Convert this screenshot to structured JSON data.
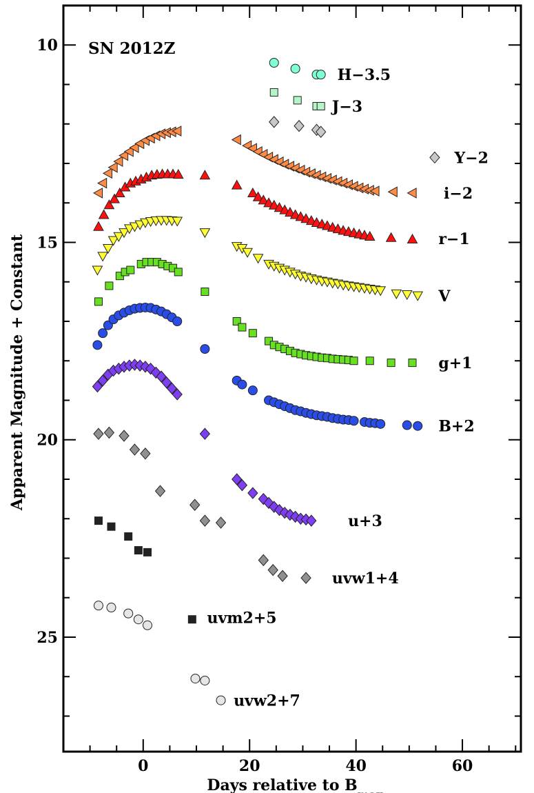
{
  "chart_data": {
    "type": "scatter",
    "title": "SN 2012Z",
    "xlabel": "Days relative to B",
    "xlabel_subscript": "max",
    "ylabel": "Apparent Magnitude + Constant",
    "xlim": [
      -15,
      71
    ],
    "ylim": [
      27.9,
      9.0
    ],
    "y_inverted": true,
    "x_ticks": [
      0,
      20,
      40,
      60
    ],
    "x_tick_labels": [
      "0",
      "20",
      "40",
      "60"
    ],
    "y_ticks": [
      10,
      15,
      20,
      25
    ],
    "y_tick_labels": [
      "10",
      "15",
      "20",
      "25"
    ],
    "series": [
      {
        "name": "H−3.5",
        "marker": "circle",
        "color": "#7fffd4",
        "label_pos": [
          36.5,
          10.75
        ],
        "x": [
          24.6,
          28.6,
          32.6,
          33.4
        ],
        "y": [
          10.45,
          10.6,
          10.75,
          10.75
        ]
      },
      {
        "name": "J−3",
        "marker": "square",
        "color": "#b5f5c8",
        "label_pos": [
          35.5,
          11.55
        ],
        "x": [
          24.6,
          29.0,
          32.6,
          33.4
        ],
        "y": [
          11.2,
          11.4,
          11.55,
          11.55
        ]
      },
      {
        "name": "Y−2",
        "marker": "diamond",
        "color": "#c8c8c8",
        "label_pos": [
          58.5,
          12.85
        ],
        "extra_x": [
          54.8
        ],
        "extra_y": [
          12.85
        ],
        "x": [
          24.6,
          29.3,
          32.6,
          33.4
        ],
        "y": [
          11.95,
          12.05,
          12.15,
          12.2
        ]
      },
      {
        "name": "i−2",
        "marker": "triangle-left",
        "color": "#ff8c46",
        "label_pos": [
          56.5,
          13.75
        ],
        "x": [
          -8.4,
          -7.6,
          -6.6,
          -5.6,
          -4.6,
          -3.6,
          -2.6,
          -1.6,
          -0.6,
          0.4,
          1.4,
          2.4,
          3.4,
          4.4,
          5.4,
          6.4,
          17.6,
          19.6,
          20.6,
          21.6,
          22.6,
          23.6,
          24.6,
          25.6,
          26.6,
          27.6,
          28.6,
          29.6,
          30.6,
          31.6,
          32.6,
          33.6,
          34.6,
          35.6,
          36.6,
          37.6,
          38.6,
          39.6,
          40.6,
          41.6,
          42.6,
          43.6,
          47.0,
          50.6
        ],
        "y": [
          13.75,
          13.5,
          13.25,
          13.1,
          12.95,
          12.8,
          12.7,
          12.6,
          12.5,
          12.42,
          12.36,
          12.3,
          12.25,
          12.22,
          12.2,
          12.18,
          12.4,
          12.55,
          12.62,
          12.7,
          12.77,
          12.84,
          12.9,
          12.96,
          13.02,
          13.07,
          13.12,
          13.17,
          13.22,
          13.26,
          13.3,
          13.34,
          13.38,
          13.42,
          13.46,
          13.5,
          13.54,
          13.58,
          13.62,
          13.65,
          13.68,
          13.7,
          13.72,
          13.75
        ]
      },
      {
        "name": "r−1",
        "marker": "triangle-up",
        "color": "#ff1010",
        "label_pos": [
          55.5,
          14.9
        ],
        "x": [
          -8.4,
          -7.4,
          -6.4,
          -5.4,
          -4.4,
          -3.4,
          -2.4,
          -1.4,
          -0.4,
          0.6,
          1.6,
          2.6,
          3.6,
          4.6,
          5.6,
          6.6,
          11.6,
          17.6,
          20.6,
          21.6,
          22.6,
          23.6,
          24.6,
          25.6,
          26.6,
          27.6,
          28.6,
          29.6,
          30.6,
          31.6,
          32.6,
          33.6,
          34.6,
          35.6,
          36.6,
          37.6,
          38.6,
          39.6,
          40.6,
          41.6,
          42.6,
          46.6,
          50.6
        ],
        "y": [
          14.6,
          14.3,
          14.05,
          13.9,
          13.75,
          13.6,
          13.5,
          13.45,
          13.4,
          13.35,
          13.3,
          13.28,
          13.27,
          13.27,
          13.27,
          13.28,
          13.3,
          13.55,
          13.75,
          13.85,
          13.93,
          14.0,
          14.06,
          14.12,
          14.18,
          14.24,
          14.3,
          14.35,
          14.4,
          14.45,
          14.5,
          14.54,
          14.58,
          14.62,
          14.66,
          14.7,
          14.73,
          14.76,
          14.79,
          14.82,
          14.85,
          14.88,
          14.92
        ]
      },
      {
        "name": "V",
        "marker": "triangle-down",
        "color": "#ffff33",
        "label_pos": [
          55.5,
          16.35
        ],
        "x": [
          -8.6,
          -7.6,
          -6.6,
          -5.6,
          -4.6,
          -3.6,
          -2.6,
          -1.6,
          -0.6,
          0.4,
          1.4,
          2.4,
          3.4,
          4.4,
          5.4,
          6.4,
          11.6,
          17.6,
          18.6,
          19.6,
          21.6,
          23.6,
          24.6,
          25.6,
          26.6,
          27.6,
          28.6,
          29.6,
          30.6,
          31.6,
          32.6,
          33.6,
          34.6,
          35.6,
          36.6,
          37.6,
          38.6,
          39.6,
          40.6,
          41.6,
          42.6,
          43.6,
          44.6,
          47.6,
          49.6,
          51.6
        ],
        "y": [
          15.7,
          15.35,
          15.15,
          14.95,
          14.85,
          14.75,
          14.65,
          14.6,
          14.55,
          14.5,
          14.47,
          14.45,
          14.44,
          14.44,
          14.45,
          14.46,
          14.75,
          15.1,
          15.15,
          15.25,
          15.4,
          15.55,
          15.6,
          15.65,
          15.7,
          15.75,
          15.8,
          15.85,
          15.88,
          15.92,
          15.95,
          15.98,
          16.0,
          16.03,
          16.05,
          16.08,
          16.1,
          16.12,
          16.14,
          16.16,
          16.18,
          16.2,
          16.22,
          16.3,
          16.32,
          16.35
        ]
      },
      {
        "name": "g+1",
        "marker": "square",
        "color": "#66e020",
        "label_pos": [
          55.5,
          18.05
        ],
        "x": [
          -8.4,
          -6.4,
          -4.4,
          -3.4,
          -2.4,
          -0.4,
          0.6,
          1.6,
          2.6,
          3.6,
          4.6,
          5.6,
          6.6,
          11.6,
          17.6,
          18.6,
          20.6,
          23.6,
          24.6,
          25.6,
          26.6,
          27.6,
          28.6,
          29.6,
          30.6,
          31.6,
          32.6,
          33.6,
          34.6,
          35.6,
          36.6,
          37.6,
          38.6,
          39.6,
          42.6,
          46.6,
          50.6
        ],
        "y": [
          16.5,
          16.1,
          15.85,
          15.75,
          15.7,
          15.55,
          15.5,
          15.5,
          15.5,
          15.55,
          15.6,
          15.65,
          15.75,
          16.25,
          17.0,
          17.15,
          17.3,
          17.5,
          17.6,
          17.65,
          17.7,
          17.75,
          17.8,
          17.83,
          17.86,
          17.88,
          17.9,
          17.92,
          17.93,
          17.95,
          17.96,
          17.97,
          17.98,
          18.0,
          18.0,
          18.05,
          18.05
        ]
      },
      {
        "name": "B+2",
        "marker": "circle",
        "color": "#2a4de8",
        "label_pos": [
          55.5,
          19.65
        ],
        "x": [
          -8.6,
          -7.6,
          -6.6,
          -5.6,
          -4.6,
          -3.6,
          -2.6,
          -1.6,
          -0.6,
          0.4,
          1.4,
          2.4,
          3.4,
          4.4,
          5.4,
          6.4,
          11.6,
          17.6,
          18.6,
          20.6,
          23.6,
          24.6,
          25.6,
          26.6,
          27.6,
          28.6,
          29.6,
          30.6,
          31.6,
          32.6,
          33.6,
          34.6,
          35.6,
          36.6,
          37.6,
          38.6,
          39.6,
          41.6,
          42.6,
          43.6,
          44.6,
          49.6,
          51.6
        ],
        "y": [
          17.6,
          17.3,
          17.1,
          16.95,
          16.85,
          16.78,
          16.72,
          16.68,
          16.66,
          16.65,
          16.66,
          16.7,
          16.75,
          16.82,
          16.9,
          17.0,
          17.7,
          18.5,
          18.6,
          18.75,
          19.0,
          19.05,
          19.1,
          19.15,
          19.2,
          19.25,
          19.28,
          19.32,
          19.35,
          19.38,
          19.4,
          19.42,
          19.45,
          19.47,
          19.49,
          19.5,
          19.52,
          19.55,
          19.57,
          19.58,
          19.6,
          19.63,
          19.65
        ]
      },
      {
        "name": "u+3",
        "marker": "diamond",
        "color": "#7e3ff2",
        "label_pos": [
          38.5,
          22.05
        ],
        "x": [
          -8.6,
          -7.6,
          -6.6,
          -5.6,
          -4.6,
          -3.6,
          -2.6,
          -1.6,
          -0.6,
          0.4,
          1.4,
          2.4,
          3.4,
          4.4,
          5.4,
          6.4,
          11.6,
          17.6,
          18.6,
          20.6,
          22.6,
          23.6,
          24.6,
          25.6,
          26.6,
          27.6,
          28.6,
          29.6,
          30.6,
          31.6
        ],
        "y": [
          18.65,
          18.5,
          18.35,
          18.25,
          18.2,
          18.15,
          18.12,
          18.1,
          18.12,
          18.15,
          18.2,
          18.3,
          18.4,
          18.55,
          18.7,
          18.85,
          19.85,
          21.0,
          21.15,
          21.35,
          21.5,
          21.6,
          21.7,
          21.78,
          21.85,
          21.9,
          21.95,
          22.0,
          22.02,
          22.05
        ]
      },
      {
        "name": "uvw1+4",
        "marker": "diamond",
        "color": "#909090",
        "label_pos": [
          35.5,
          23.5
        ],
        "x": [
          -8.4,
          -6.4,
          -3.6,
          -1.6,
          0.4,
          3.2,
          9.7,
          11.6,
          14.6,
          22.6,
          24.4,
          26.2,
          30.6
        ],
        "y": [
          19.85,
          19.82,
          19.9,
          20.25,
          20.35,
          21.3,
          21.65,
          22.05,
          22.1,
          23.05,
          23.3,
          23.45,
          23.5
        ]
      },
      {
        "name": "uvm2+5",
        "marker": "square",
        "color": "#222222",
        "label_pos": [
          12.0,
          24.5
        ],
        "x": [
          -8.4,
          -6.0,
          -2.8,
          -0.9,
          0.8,
          9.2
        ],
        "y": [
          22.05,
          22.2,
          22.45,
          22.8,
          22.85,
          24.55
        ]
      },
      {
        "name": "uvw2+7",
        "marker": "circle",
        "color": "#e6e6e6",
        "label_pos": [
          17.0,
          26.6
        ],
        "x": [
          -8.4,
          -6.0,
          -2.8,
          -0.9,
          0.8,
          9.8,
          11.6,
          14.6
        ],
        "y": [
          24.2,
          24.25,
          24.4,
          24.55,
          24.7,
          26.05,
          26.1,
          26.6
        ]
      }
    ]
  }
}
